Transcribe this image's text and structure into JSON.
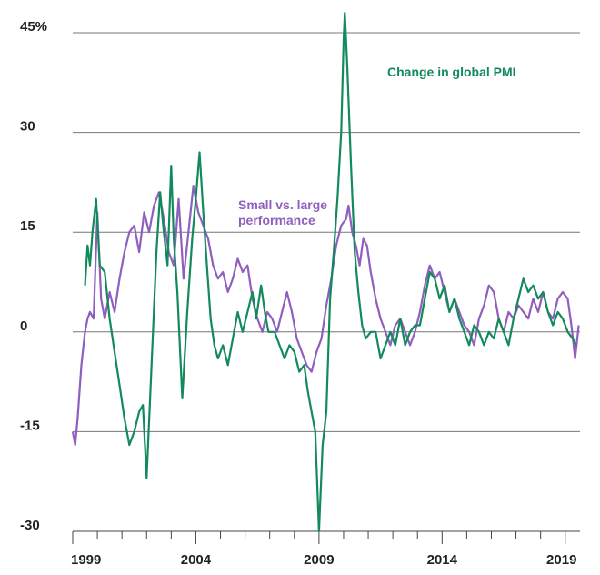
{
  "chart_data": {
    "type": "line",
    "title": "",
    "xlabel": "",
    "ylabel": "",
    "xlim": [
      1999,
      2019.6
    ],
    "ylim": [
      -30,
      45
    ],
    "grid": true,
    "y_ticks": [
      {
        "value": 45,
        "label": "45%"
      },
      {
        "value": 30,
        "label": "30"
      },
      {
        "value": 15,
        "label": "15"
      },
      {
        "value": 0,
        "label": "0"
      },
      {
        "value": -15,
        "label": "-15"
      },
      {
        "value": -30,
        "label": "-30"
      }
    ],
    "x_ticks": [
      {
        "value": 1999,
        "label": "1999"
      },
      {
        "value": 2004,
        "label": "2004"
      },
      {
        "value": 2009,
        "label": "2009"
      },
      {
        "value": 2014,
        "label": "2014"
      },
      {
        "value": 2019,
        "label": "2019"
      }
    ],
    "series": [
      {
        "name": "Change in global PMI",
        "label_lines": [
          "Change in global PMI"
        ],
        "color": "#138a5c",
        "points": [
          [
            1999.5,
            7
          ],
          [
            1999.6,
            13
          ],
          [
            1999.7,
            10
          ],
          [
            1999.8,
            15
          ],
          [
            1999.95,
            20
          ],
          [
            2000.1,
            10
          ],
          [
            2000.3,
            9
          ],
          [
            2000.5,
            2
          ],
          [
            2000.7,
            -3
          ],
          [
            2000.9,
            -8
          ],
          [
            2001.1,
            -13
          ],
          [
            2001.3,
            -17
          ],
          [
            2001.5,
            -15
          ],
          [
            2001.7,
            -12
          ],
          [
            2001.85,
            -11
          ],
          [
            2002.0,
            -22
          ],
          [
            2002.2,
            -5
          ],
          [
            2002.4,
            12
          ],
          [
            2002.55,
            21
          ],
          [
            2002.7,
            15
          ],
          [
            2002.85,
            10
          ],
          [
            2003.0,
            25
          ],
          [
            2003.1,
            14
          ],
          [
            2003.25,
            6
          ],
          [
            2003.45,
            -10
          ],
          [
            2003.65,
            3
          ],
          [
            2003.85,
            14
          ],
          [
            2004.0,
            20
          ],
          [
            2004.15,
            27
          ],
          [
            2004.3,
            18
          ],
          [
            2004.45,
            10
          ],
          [
            2004.6,
            2
          ],
          [
            2004.75,
            -2
          ],
          [
            2004.9,
            -4
          ],
          [
            2005.1,
            -2
          ],
          [
            2005.3,
            -5
          ],
          [
            2005.5,
            -1
          ],
          [
            2005.7,
            3
          ],
          [
            2005.9,
            0
          ],
          [
            2006.1,
            3
          ],
          [
            2006.3,
            6
          ],
          [
            2006.45,
            2
          ],
          [
            2006.65,
            7
          ],
          [
            2006.8,
            3
          ],
          [
            2006.95,
            0
          ],
          [
            2007.2,
            0
          ],
          [
            2007.4,
            -2
          ],
          [
            2007.6,
            -4
          ],
          [
            2007.8,
            -2
          ],
          [
            2008.0,
            -3
          ],
          [
            2008.2,
            -6
          ],
          [
            2008.4,
            -5
          ],
          [
            2008.55,
            -9
          ],
          [
            2008.7,
            -12
          ],
          [
            2008.85,
            -15
          ],
          [
            2009.0,
            -30
          ],
          [
            2009.15,
            -17
          ],
          [
            2009.3,
            -12
          ],
          [
            2009.45,
            5
          ],
          [
            2009.6,
            12
          ],
          [
            2009.75,
            20
          ],
          [
            2009.9,
            30
          ],
          [
            2010.0,
            44
          ],
          [
            2010.05,
            48
          ],
          [
            2010.15,
            40
          ],
          [
            2010.3,
            25
          ],
          [
            2010.45,
            12
          ],
          [
            2010.6,
            6
          ],
          [
            2010.75,
            1
          ],
          [
            2010.9,
            -1
          ],
          [
            2011.1,
            0
          ],
          [
            2011.3,
            0
          ],
          [
            2011.5,
            -4
          ],
          [
            2011.7,
            -2
          ],
          [
            2011.9,
            0
          ],
          [
            2012.1,
            -2
          ],
          [
            2012.3,
            2
          ],
          [
            2012.5,
            -2
          ],
          [
            2012.7,
            0
          ],
          [
            2012.9,
            1
          ],
          [
            2013.1,
            1
          ],
          [
            2013.3,
            5
          ],
          [
            2013.5,
            9
          ],
          [
            2013.7,
            8
          ],
          [
            2013.9,
            5
          ],
          [
            2014.1,
            7
          ],
          [
            2014.3,
            3
          ],
          [
            2014.5,
            5
          ],
          [
            2014.7,
            2
          ],
          [
            2014.9,
            0
          ],
          [
            2015.1,
            -2
          ],
          [
            2015.3,
            1
          ],
          [
            2015.5,
            0
          ],
          [
            2015.7,
            -2
          ],
          [
            2015.9,
            0
          ],
          [
            2016.1,
            -1
          ],
          [
            2016.3,
            2
          ],
          [
            2016.5,
            0
          ],
          [
            2016.7,
            -2
          ],
          [
            2016.9,
            2
          ],
          [
            2017.1,
            5
          ],
          [
            2017.3,
            8
          ],
          [
            2017.5,
            6
          ],
          [
            2017.7,
            7
          ],
          [
            2017.9,
            5
          ],
          [
            2018.1,
            6
          ],
          [
            2018.3,
            3
          ],
          [
            2018.5,
            1
          ],
          [
            2018.7,
            3
          ],
          [
            2018.9,
            2
          ],
          [
            2019.1,
            0
          ],
          [
            2019.3,
            -1
          ],
          [
            2019.45,
            -2
          ]
        ]
      },
      {
        "name": "Small vs. large performance",
        "label_lines": [
          "Small vs. large",
          "performance"
        ],
        "color": "#8f5fbf",
        "points": [
          [
            1999.0,
            -15
          ],
          [
            1999.1,
            -17
          ],
          [
            1999.2,
            -13
          ],
          [
            1999.35,
            -5
          ],
          [
            1999.5,
            0
          ],
          [
            1999.6,
            2
          ],
          [
            1999.7,
            3
          ],
          [
            1999.85,
            2
          ],
          [
            2000.0,
            18
          ],
          [
            2000.15,
            5
          ],
          [
            2000.3,
            2
          ],
          [
            2000.5,
            6
          ],
          [
            2000.7,
            3
          ],
          [
            2000.9,
            8
          ],
          [
            2001.1,
            12
          ],
          [
            2001.3,
            15
          ],
          [
            2001.5,
            16
          ],
          [
            2001.7,
            12
          ],
          [
            2001.9,
            18
          ],
          [
            2002.1,
            15
          ],
          [
            2002.3,
            19
          ],
          [
            2002.5,
            21
          ],
          [
            2002.7,
            17
          ],
          [
            2002.9,
            12
          ],
          [
            2003.1,
            10
          ],
          [
            2003.3,
            20
          ],
          [
            2003.5,
            8
          ],
          [
            2003.7,
            15
          ],
          [
            2003.9,
            22
          ],
          [
            2004.1,
            18
          ],
          [
            2004.3,
            16
          ],
          [
            2004.5,
            14
          ],
          [
            2004.7,
            10
          ],
          [
            2004.9,
            8
          ],
          [
            2005.1,
            9
          ],
          [
            2005.3,
            6
          ],
          [
            2005.5,
            8
          ],
          [
            2005.7,
            11
          ],
          [
            2005.9,
            9
          ],
          [
            2006.1,
            10
          ],
          [
            2006.3,
            5
          ],
          [
            2006.5,
            2
          ],
          [
            2006.7,
            0
          ],
          [
            2006.9,
            3
          ],
          [
            2007.1,
            2
          ],
          [
            2007.3,
            0
          ],
          [
            2007.5,
            3
          ],
          [
            2007.7,
            6
          ],
          [
            2007.9,
            3
          ],
          [
            2008.1,
            -1
          ],
          [
            2008.3,
            -3
          ],
          [
            2008.5,
            -5
          ],
          [
            2008.7,
            -6
          ],
          [
            2008.9,
            -3
          ],
          [
            2009.1,
            -1
          ],
          [
            2009.3,
            4
          ],
          [
            2009.5,
            8
          ],
          [
            2009.7,
            13
          ],
          [
            2009.9,
            16
          ],
          [
            2010.1,
            17
          ],
          [
            2010.2,
            19
          ],
          [
            2010.35,
            15
          ],
          [
            2010.5,
            13
          ],
          [
            2010.65,
            10
          ],
          [
            2010.8,
            14
          ],
          [
            2010.95,
            13
          ],
          [
            2011.1,
            9
          ],
          [
            2011.3,
            5
          ],
          [
            2011.5,
            2
          ],
          [
            2011.7,
            0
          ],
          [
            2011.9,
            -2
          ],
          [
            2012.1,
            1
          ],
          [
            2012.3,
            2
          ],
          [
            2012.5,
            0
          ],
          [
            2012.7,
            -2
          ],
          [
            2012.9,
            0
          ],
          [
            2013.1,
            3
          ],
          [
            2013.3,
            7
          ],
          [
            2013.5,
            10
          ],
          [
            2013.7,
            8
          ],
          [
            2013.9,
            9
          ],
          [
            2014.1,
            6
          ],
          [
            2014.3,
            3
          ],
          [
            2014.5,
            5
          ],
          [
            2014.7,
            3
          ],
          [
            2014.9,
            1
          ],
          [
            2015.1,
            0
          ],
          [
            2015.3,
            -2
          ],
          [
            2015.5,
            2
          ],
          [
            2015.7,
            4
          ],
          [
            2015.9,
            7
          ],
          [
            2016.1,
            6
          ],
          [
            2016.3,
            2
          ],
          [
            2016.5,
            0
          ],
          [
            2016.7,
            3
          ],
          [
            2016.9,
            2
          ],
          [
            2017.1,
            4
          ],
          [
            2017.3,
            3
          ],
          [
            2017.5,
            2
          ],
          [
            2017.7,
            5
          ],
          [
            2017.9,
            3
          ],
          [
            2018.1,
            6
          ],
          [
            2018.3,
            3
          ],
          [
            2018.5,
            2
          ],
          [
            2018.7,
            5
          ],
          [
            2018.9,
            6
          ],
          [
            2019.1,
            5
          ],
          [
            2019.25,
            1
          ],
          [
            2019.4,
            -4
          ],
          [
            2019.55,
            1
          ]
        ]
      }
    ]
  }
}
